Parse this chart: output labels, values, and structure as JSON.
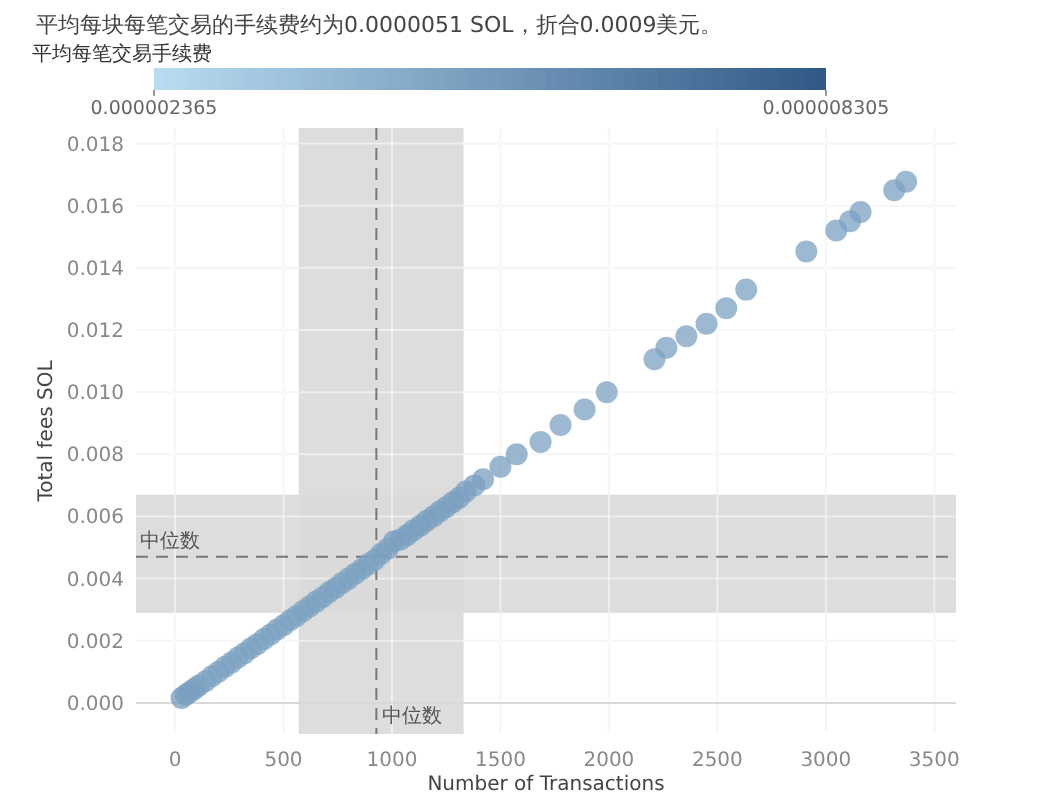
{
  "chart_data": {
    "type": "scatter",
    "subtitle": "平均每块每笔交易的手续费约为0.0000051 SOL，折合0.0009美元。",
    "xlabel": "Number of Transactions",
    "ylabel": "Total fees SOL",
    "clabel": "平均每笔交易手续费",
    "clim": [
      2.365e-06,
      8.305e-06
    ],
    "cticks": [
      {
        "value": 2.365e-06,
        "label": "0.000002365"
      },
      {
        "value": 8.305e-06,
        "label": "0.000008305"
      }
    ],
    "xlim": [
      -180,
      3600
    ],
    "ylim": [
      -0.001,
      0.0185
    ],
    "xticks": [
      0,
      500,
      1000,
      1500,
      2000,
      2500,
      3000,
      3500
    ],
    "yticks": [
      {
        "value": 0,
        "label": "0.000"
      },
      {
        "value": 0.002,
        "label": "0.002"
      },
      {
        "value": 0.004,
        "label": "0.004"
      },
      {
        "value": 0.006,
        "label": "0.006"
      },
      {
        "value": 0.008,
        "label": "0.008"
      },
      {
        "value": 0.01,
        "label": "0.010"
      },
      {
        "value": 0.012,
        "label": "0.012"
      },
      {
        "value": 0.014,
        "label": "0.014"
      },
      {
        "value": 0.016,
        "label": "0.016"
      },
      {
        "value": 0.018,
        "label": "0.018"
      }
    ],
    "grid": true,
    "marker": "circle",
    "bands": [
      {
        "axis": "x",
        "from": 570,
        "to": 1330,
        "color": "#d9d9d9"
      },
      {
        "axis": "y",
        "from": 0.0029,
        "to": 0.0067,
        "color": "#d9d9d9"
      }
    ],
    "ref_lines": [
      {
        "axis": "x",
        "value": 928,
        "label": "中位数",
        "line_style": "dashed",
        "color": "#777777"
      },
      {
        "axis": "y",
        "value": 0.0047,
        "label": "中位数",
        "line_style": "dashed",
        "color": "#777777"
      }
    ],
    "series": [
      {
        "x": [
          30,
          50,
          70,
          90,
          110,
          140,
          170,
          200,
          230,
          260,
          290,
          320,
          350,
          380,
          410,
          440,
          470,
          500,
          530,
          560,
          590,
          620,
          650,
          680,
          710,
          740,
          770,
          800,
          830,
          860,
          890,
          920,
          950,
          980,
          1010,
          1040,
          1070,
          1100,
          1130,
          1160,
          1190,
          1220,
          1250,
          1280,
          1310,
          1340,
          1380,
          1420,
          1500,
          1575,
          1685,
          1777,
          1888,
          1990,
          2210,
          2265,
          2357,
          2450,
          2541,
          2633,
          2910,
          3048,
          3112,
          3160,
          3315,
          3370
        ],
        "values": [
          0.00016,
          0.00026,
          0.00036,
          0.00046,
          0.00056,
          0.0007,
          0.00086,
          0.001,
          0.00116,
          0.0013,
          0.00146,
          0.0016,
          0.00176,
          0.0019,
          0.00206,
          0.0022,
          0.00236,
          0.0025,
          0.00266,
          0.0028,
          0.00296,
          0.0031,
          0.00326,
          0.0034,
          0.00356,
          0.0037,
          0.00386,
          0.004,
          0.00416,
          0.0043,
          0.00446,
          0.0046,
          0.0048,
          0.00496,
          0.0052,
          0.00526,
          0.0054,
          0.00556,
          0.0057,
          0.00586,
          0.006,
          0.00616,
          0.0063,
          0.00646,
          0.0066,
          0.0068,
          0.007,
          0.0072,
          0.0076,
          0.008,
          0.0084,
          0.00894,
          0.00944,
          0.01,
          0.01106,
          0.01143,
          0.0118,
          0.0122,
          0.0127,
          0.0133,
          0.01453,
          0.0152,
          0.0155,
          0.0158,
          0.0165,
          0.01677
        ],
        "cvalues": [
          5.3e-06,
          5.2e-06,
          5.1e-06,
          5.1e-06,
          5.1e-06,
          5e-06,
          5e-06,
          5e-06,
          5e-06,
          5e-06,
          5e-06,
          5e-06,
          5e-06,
          5e-06,
          5e-06,
          5e-06,
          5e-06,
          5e-06,
          5e-06,
          5e-06,
          5e-06,
          5e-06,
          5e-06,
          5e-06,
          5e-06,
          5e-06,
          5e-06,
          5e-06,
          5e-06,
          5e-06,
          5e-06,
          5e-06,
          5e-06,
          5.1e-06,
          5.1e-06,
          5.1e-06,
          5.1e-06,
          5.1e-06,
          5.1e-06,
          5.1e-06,
          5.1e-06,
          5.1e-06,
          5.1e-06,
          5.1e-06,
          5.1e-06,
          5.1e-06,
          5.1e-06,
          5.1e-06,
          5.1e-06,
          5.1e-06,
          5e-06,
          5e-06,
          5e-06,
          5e-06,
          5e-06,
          5e-06,
          5e-06,
          5e-06,
          5e-06,
          5e-06,
          5e-06,
          5e-06,
          5e-06,
          5e-06,
          5e-06,
          5e-06
        ]
      }
    ]
  }
}
